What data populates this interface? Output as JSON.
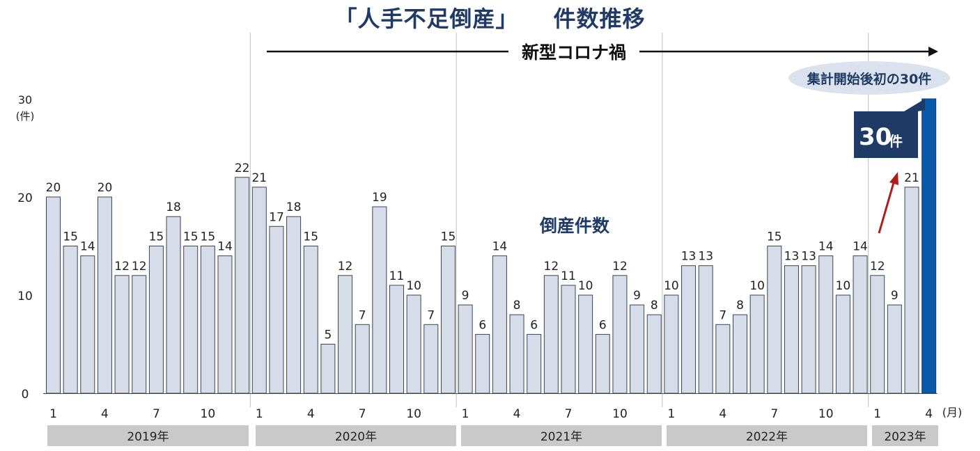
{
  "title": {
    "main": "「人手不足倒産」",
    "sub": "件数推移"
  },
  "covid_label": "新型コロナ禍",
  "series_label": "倒産件数",
  "callout_box": {
    "value": "30",
    "unit": "件"
  },
  "callout_bubble": "集計開始後初の30件",
  "y_unit": {
    "top": "30",
    "bottom": "(件)"
  },
  "month_unit": "(月)",
  "colors": {
    "bar": "#d6dde8",
    "bar_stroke": "#3a4356",
    "highlight": "#0a58a8",
    "title": "#1f3a64",
    "arrow": "#b01c1c",
    "band": "#c9c9c9"
  },
  "chart_data": {
    "type": "bar",
    "ylim": [
      0,
      30
    ],
    "yticks": [
      0,
      10,
      20
    ],
    "values": [
      20,
      15,
      14,
      20,
      12,
      12,
      15,
      18,
      15,
      15,
      14,
      22,
      21,
      17,
      18,
      15,
      5,
      12,
      7,
      19,
      11,
      10,
      7,
      15,
      9,
      6,
      14,
      8,
      6,
      12,
      11,
      10,
      6,
      12,
      9,
      8,
      10,
      13,
      13,
      7,
      8,
      10,
      15,
      13,
      13,
      14,
      10,
      14,
      12,
      9,
      21,
      30
    ],
    "month_ticks": [
      "1",
      "4",
      "7",
      "10"
    ],
    "years": [
      "2019年",
      "2020年",
      "2021年",
      "2022年",
      "2023年"
    ],
    "highlight_index": 51
  }
}
